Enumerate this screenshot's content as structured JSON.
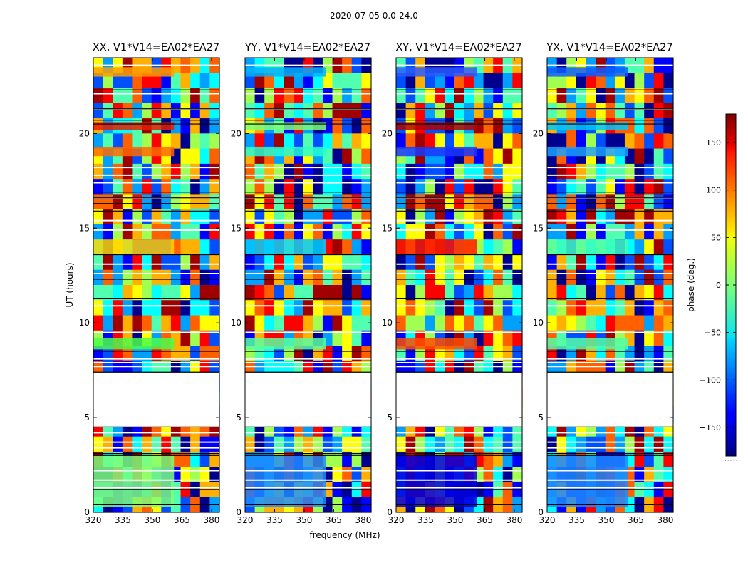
{
  "figure": {
    "suptitle": "2020-07-05 0.0-24.0",
    "ylabel": "UT (hours)",
    "xlabel": "frequency (MHz)",
    "colorbar_label": "phase (deg.)",
    "colorbar_footer": "......"
  },
  "chart_data": {
    "type": "heatmap",
    "panels": [
      {
        "title": "XX, V1*V14=EA02*EA27",
        "stripe_colors": [
          "#7cff79",
          "#ffd500",
          "#ff6a00",
          "#e81c00",
          "#ff9d00",
          "#4aff4a"
        ]
      },
      {
        "title": "YY, V1*V14=EA02*EA27",
        "stripe_colors": [
          "#1c8bff",
          "#00d5ff",
          "#23ffd4",
          "#7cff79",
          "#00b0ff",
          "#58ffa0"
        ]
      },
      {
        "title": "XY, V1*V14=EA02*EA27",
        "stripe_colors": [
          "#0000e0",
          "#ff1a00",
          "#1a37ff",
          "#b30000",
          "#2a5bff",
          "#ff4d00"
        ]
      },
      {
        "title": "YX, V1*V14=EA02*EA27",
        "stripe_colors": [
          "#1c8bff",
          "#43ffb3",
          "#1aa0ff",
          "#00c8ff",
          "#0d5cff",
          "#52ffa6"
        ]
      }
    ],
    "xlim": [
      320,
      384
    ],
    "x_ticks": [
      320,
      335,
      350,
      365,
      380
    ],
    "x_tick_labels": [
      "320",
      "335",
      "350",
      "365",
      "380"
    ],
    "ylim": [
      0,
      24
    ],
    "y_ticks": [
      0,
      5,
      10,
      15,
      20
    ],
    "y_tick_labels": [
      "0",
      "5",
      "10",
      "15",
      "20"
    ],
    "blank_hours": [
      4.5,
      7.4
    ],
    "colorbar": {
      "vmin": -180,
      "vmax": 180,
      "ticks": [
        -150,
        -100,
        -50,
        0,
        50,
        100,
        150
      ],
      "tick_labels": [
        "−150",
        "−100",
        "−50",
        "0",
        "50",
        "100",
        "150"
      ],
      "colormap": "jet"
    }
  }
}
